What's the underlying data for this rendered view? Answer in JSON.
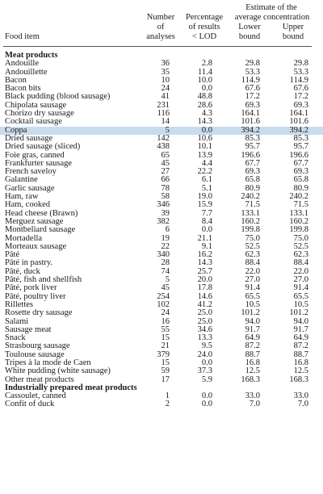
{
  "header": {
    "estimate_line1": "Estimate of the",
    "col_number_line1": "Number",
    "col_number_line2": "of",
    "col_number_line3": "analyses",
    "col_pct_line1": "Percentage",
    "col_pct_line2": "of results",
    "col_pct_line3": "< LOD",
    "estimate_line2": "average concentration",
    "col_lower_line1": "Lower",
    "col_lower_line2": "bound",
    "col_upper_line1": "Upper",
    "col_upper_line2": "bound",
    "col_food": "Food item"
  },
  "rows": [
    {
      "type": "section",
      "name": "Meat products"
    },
    {
      "name": "Andouille",
      "n": "36",
      "pct": "2.8",
      "lower": "29.8",
      "upper": "29.8"
    },
    {
      "name": "Andouillette",
      "n": "35",
      "pct": "11.4",
      "lower": "53.3",
      "upper": "53.3"
    },
    {
      "name": "Bacon",
      "n": "10",
      "pct": "10.0",
      "lower": "114.9",
      "upper": "114.9"
    },
    {
      "name": "Bacon bits",
      "n": "24",
      "pct": "0.0",
      "lower": "67.6",
      "upper": "67.6"
    },
    {
      "name": "Black pudding (blood sausage)",
      "n": "41",
      "pct": "48.8",
      "lower": "17.2",
      "upper": "17.2"
    },
    {
      "name": "Chipolata sausage",
      "n": "231",
      "pct": "28.6",
      "lower": "69.3",
      "upper": "69.3"
    },
    {
      "name": "Chorizo dry sausage",
      "n": "116",
      "pct": "4.3",
      "lower": "164.1",
      "upper": "164.1"
    },
    {
      "name": "Cocktail sausage",
      "n": "14",
      "pct": "14.3",
      "lower": "101.6",
      "upper": "101.6"
    },
    {
      "name": "Coppa",
      "n": "5",
      "pct": "0.0",
      "lower": "394.2",
      "upper": "394.2",
      "highlight": true
    },
    {
      "name": "Dried sausage",
      "n": "142",
      "pct": "10.6",
      "lower": "85.3",
      "upper": "85.3"
    },
    {
      "name": "Dried sausage (sliced)",
      "n": "438",
      "pct": "10.1",
      "lower": "95.7",
      "upper": "95.7"
    },
    {
      "name": "Foie gras, canned",
      "n": "65",
      "pct": "13.9",
      "lower": "196.6",
      "upper": "196.6"
    },
    {
      "name": "Frankfurter sausage",
      "n": "45",
      "pct": "4.4",
      "lower": "67.7",
      "upper": "67.7"
    },
    {
      "name": "French saveloy",
      "n": "27",
      "pct": "22.2",
      "lower": "69.3",
      "upper": "69.3"
    },
    {
      "name": "Galantine",
      "n": "66",
      "pct": "6.1",
      "lower": "65.8",
      "upper": "65.8"
    },
    {
      "name": "Garlic sausage",
      "n": "78",
      "pct": "5.1",
      "lower": "80.9",
      "upper": "80.9"
    },
    {
      "name": "Ham, raw",
      "n": "58",
      "pct": "19.0",
      "lower": "240.2",
      "upper": "240.2"
    },
    {
      "name": "Ham, cooked",
      "n": "346",
      "pct": "15.9",
      "lower": "71.5",
      "upper": "71.5"
    },
    {
      "name": "Head cheese (Brawn)",
      "n": "39",
      "pct": "7.7",
      "lower": "133.1",
      "upper": "133.1"
    },
    {
      "name": "Merguez sausage",
      "n": "382",
      "pct": "8.4",
      "lower": "160.2",
      "upper": "160.2"
    },
    {
      "name": "Montbeliard sausage",
      "n": "6",
      "pct": "0.0",
      "lower": "199.8",
      "upper": "199.8"
    },
    {
      "name": "Mortadella",
      "n": "19",
      "pct": "21.1",
      "lower": "75.0",
      "upper": "75.0"
    },
    {
      "name": "Morteaux sausage",
      "n": "22",
      "pct": "9.1",
      "lower": "52.5",
      "upper": "52.5"
    },
    {
      "name": "Pâté",
      "n": "340",
      "pct": "16.2",
      "lower": "62.3",
      "upper": "62.3"
    },
    {
      "name": "Pâté in pastry.",
      "n": "28",
      "pct": "14.3",
      "lower": "88.4",
      "upper": "88.4"
    },
    {
      "name": "Pâté, duck",
      "n": "74",
      "pct": "25.7",
      "lower": "22.0",
      "upper": "22.0"
    },
    {
      "name": "Pâté, fish and shellfish",
      "n": "5",
      "pct": "20.0",
      "lower": "27.0",
      "upper": "27.0"
    },
    {
      "name": "Pâté, pork liver",
      "n": "45",
      "pct": "17.8",
      "lower": "91.4",
      "upper": "91.4"
    },
    {
      "name": "Pâté, poultry liver",
      "n": "254",
      "pct": "14.6",
      "lower": "65.5",
      "upper": "65.5"
    },
    {
      "name": "Rillettes",
      "n": "102",
      "pct": "41.2",
      "lower": "10.5",
      "upper": "10.5"
    },
    {
      "name": "Rosette dry sausage",
      "n": "24",
      "pct": "25.0",
      "lower": "101.2",
      "upper": "101.2"
    },
    {
      "name": "Salami",
      "n": "16",
      "pct": "25.0",
      "lower": "94.0",
      "upper": "94.0"
    },
    {
      "name": "Sausage meat",
      "n": "55",
      "pct": "34.6",
      "lower": "91.7",
      "upper": "91.7"
    },
    {
      "name": "Snack",
      "n": "15",
      "pct": "13.3",
      "lower": "64.9",
      "upper": "64.9"
    },
    {
      "name": "Strasbourg sausage",
      "n": "21",
      "pct": "9.5",
      "lower": "87.2",
      "upper": "87.2"
    },
    {
      "name": "Toulouse sausage",
      "n": "379",
      "pct": "24.0",
      "lower": "88.7",
      "upper": "88.7"
    },
    {
      "name": "Tripes à la mode de Caen",
      "n": "15",
      "pct": "0.0",
      "lower": "16.8",
      "upper": "16.8"
    },
    {
      "name": "White pudding (white sausage)",
      "n": "59",
      "pct": "37.3",
      "lower": "12.5",
      "upper": "12.5"
    },
    {
      "name": "Other meat products",
      "n": "17",
      "pct": "5.9",
      "lower": "168.3",
      "upper": "168.3"
    },
    {
      "type": "section",
      "name": "Industrially prepared meat products"
    },
    {
      "name": "Cassoulet, canned",
      "n": "1",
      "pct": "0.0",
      "lower": "33.0",
      "upper": "33.0"
    },
    {
      "name": "Confit of duck",
      "n": "2",
      "pct": "0.0",
      "lower": "7.0",
      "upper": "7.0"
    }
  ]
}
